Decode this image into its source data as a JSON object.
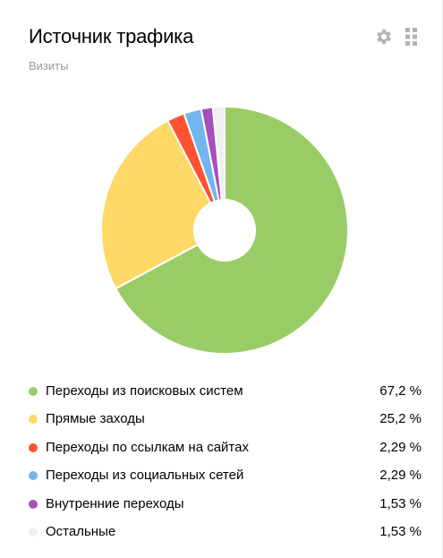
{
  "widget": {
    "title": "Источник трафика",
    "subtitle": "Визиты",
    "icons": {
      "settings": "gear-icon",
      "drag": "drag-handle-icon"
    }
  },
  "chart_data": {
    "type": "pie",
    "variant": "donut",
    "title": "Источник трафика",
    "subtitle": "Визиты",
    "categories": [
      "Переходы из поисковых систем",
      "Прямые заходы",
      "Переходы по ссылкам на сайтах",
      "Переходы из социальных сетей",
      "Внутренние переходы",
      "Остальные"
    ],
    "values": [
      67.2,
      25.2,
      2.29,
      2.29,
      1.53,
      1.53
    ],
    "colors": [
      "#99cc66",
      "#ffd966",
      "#ff5233",
      "#73b5ec",
      "#a74fbe",
      "#f0f0f0"
    ],
    "legend_position": "bottom"
  },
  "legend": [
    {
      "label": "Переходы из поисковых систем",
      "value": "67,2 %",
      "color": "#99cc66"
    },
    {
      "label": "Прямые заходы",
      "value": "25,2 %",
      "color": "#ffd966"
    },
    {
      "label": "Переходы по ссылкам на сайтах",
      "value": "2,29 %",
      "color": "#ff5233"
    },
    {
      "label": "Переходы из социальных сетей",
      "value": "2,29 %",
      "color": "#73b5ec"
    },
    {
      "label": "Внутренние переходы",
      "value": "1,53 %",
      "color": "#a74fbe"
    },
    {
      "label": "Остальные",
      "value": "1,53 %",
      "color": "#f0f0f0"
    }
  ]
}
